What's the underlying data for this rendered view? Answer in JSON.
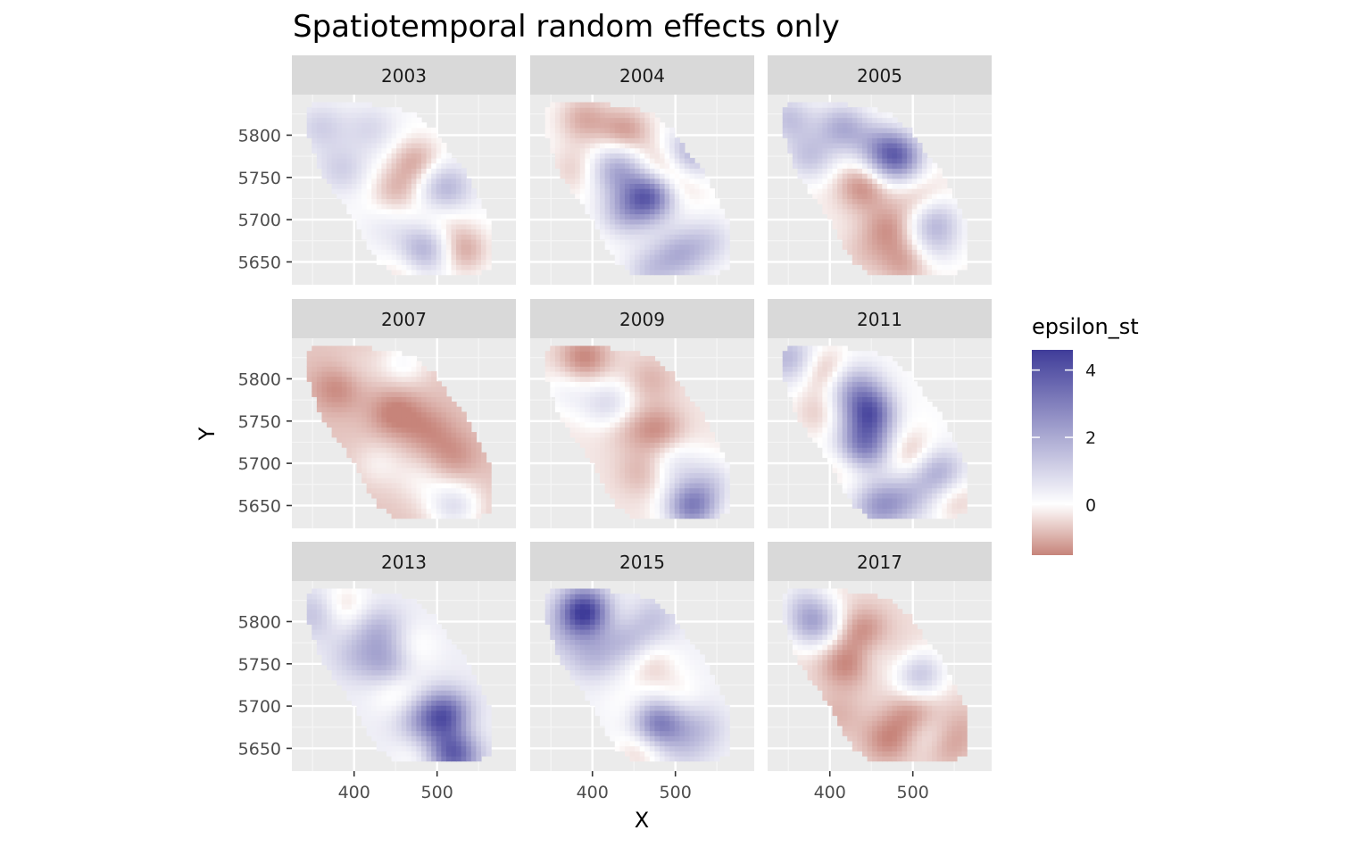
{
  "chart_data": {
    "type": "heatmap",
    "title": "Spatiotemporal random effects only",
    "xlabel": "X",
    "ylabel": "Y",
    "facets": [
      "2003",
      "2004",
      "2005",
      "2007",
      "2009",
      "2011",
      "2013",
      "2015",
      "2017"
    ],
    "xlim": [
      325,
      595
    ],
    "ylim": [
      5623,
      5848
    ],
    "x_ticks": [
      400,
      500
    ],
    "x_tick_labels": [
      "400",
      "500"
    ],
    "y_ticks": [
      5650,
      5700,
      5750,
      5800
    ],
    "y_tick_labels": [
      "5650",
      "5700",
      "5750",
      "5800"
    ],
    "grid": true,
    "legend": {
      "title": "epsilon_st",
      "position": "right",
      "range": [
        -1.5,
        4.6
      ],
      "breaks": [
        0,
        2,
        4
      ],
      "break_labels": [
        "0",
        "2",
        "4"
      ],
      "low_color": "#c7847a",
      "mid_color": "#ffffff",
      "high_color": "#3f3c99"
    },
    "region_outline": [
      [
        343,
        5834
      ],
      [
        372,
        5842
      ],
      [
        402,
        5838
      ],
      [
        438,
        5834
      ],
      [
        470,
        5828
      ],
      [
        495,
        5808
      ],
      [
        512,
        5782
      ],
      [
        532,
        5762
      ],
      [
        548,
        5732
      ],
      [
        560,
        5708
      ],
      [
        568,
        5672
      ],
      [
        566,
        5646
      ],
      [
        548,
        5636
      ],
      [
        482,
        5634
      ],
      [
        450,
        5636
      ],
      [
        430,
        5650
      ],
      [
        418,
        5666
      ],
      [
        408,
        5688
      ],
      [
        392,
        5712
      ],
      [
        374,
        5736
      ],
      [
        360,
        5756
      ],
      [
        350,
        5786
      ],
      [
        342,
        5812
      ]
    ],
    "fields": [
      {
        "year": "2003",
        "base": 0.1,
        "blobs": [
          [
            360,
            5810,
            1.0
          ],
          [
            420,
            5808,
            0.8
          ],
          [
            475,
            5770,
            -1.1
          ],
          [
            450,
            5735,
            -0.9
          ],
          [
            510,
            5738,
            1.7
          ],
          [
            505,
            5700,
            -0.5
          ],
          [
            530,
            5665,
            -1.2
          ],
          [
            485,
            5665,
            1.9
          ],
          [
            440,
            5690,
            0.4
          ],
          [
            385,
            5760,
            1.0
          ],
          [
            460,
            5640,
            -0.6
          ]
        ]
      },
      {
        "year": "2004",
        "base": 0.0,
        "blobs": [
          [
            390,
            5820,
            -1.0
          ],
          [
            440,
            5805,
            -1.2
          ],
          [
            480,
            5760,
            -1.1
          ],
          [
            470,
            5730,
            3.8
          ],
          [
            430,
            5760,
            2.0
          ],
          [
            440,
            5710,
            1.6
          ],
          [
            500,
            5740,
            -0.8
          ],
          [
            505,
            5660,
            1.6
          ],
          [
            540,
            5675,
            1.0
          ],
          [
            380,
            5760,
            -0.6
          ],
          [
            520,
            5780,
            1.9
          ],
          [
            470,
            5640,
            1.2
          ]
        ]
      },
      {
        "year": "2005",
        "base": -0.2,
        "blobs": [
          [
            350,
            5820,
            1.6
          ],
          [
            415,
            5810,
            2.0
          ],
          [
            455,
            5790,
            1.2
          ],
          [
            480,
            5775,
            3.6
          ],
          [
            440,
            5740,
            -1.2
          ],
          [
            510,
            5720,
            -0.8
          ],
          [
            525,
            5700,
            1.8
          ],
          [
            470,
            5690,
            -1.0
          ],
          [
            530,
            5670,
            0.8
          ],
          [
            490,
            5650,
            -0.9
          ],
          [
            375,
            5775,
            1.5
          ],
          [
            440,
            5660,
            -0.4
          ]
        ]
      },
      {
        "year": "2007",
        "base": -0.7,
        "blobs": [
          [
            380,
            5790,
            -0.8
          ],
          [
            450,
            5760,
            -0.9
          ],
          [
            490,
            5740,
            -0.6
          ],
          [
            430,
            5700,
            0.5
          ],
          [
            480,
            5680,
            0.5
          ],
          [
            520,
            5650,
            1.4
          ],
          [
            400,
            5810,
            0.3
          ],
          [
            520,
            5710,
            -0.6
          ],
          [
            460,
            5820,
            0.8
          ]
        ]
      },
      {
        "year": "2009",
        "base": -0.3,
        "blobs": [
          [
            390,
            5825,
            -1.2
          ],
          [
            420,
            5770,
            1.2
          ],
          [
            470,
            5800,
            -0.6
          ],
          [
            480,
            5740,
            -1.0
          ],
          [
            500,
            5700,
            0.8
          ],
          [
            520,
            5650,
            3.2
          ],
          [
            460,
            5690,
            -0.6
          ],
          [
            440,
            5745,
            -0.5
          ],
          [
            545,
            5680,
            1.0
          ],
          [
            370,
            5785,
            0.6
          ]
        ]
      },
      {
        "year": "2011",
        "base": 0.1,
        "blobs": [
          [
            350,
            5825,
            1.6
          ],
          [
            395,
            5810,
            -1.0
          ],
          [
            430,
            5790,
            1.8
          ],
          [
            450,
            5760,
            3.8
          ],
          [
            440,
            5720,
            3.0
          ],
          [
            420,
            5700,
            -0.8
          ],
          [
            470,
            5760,
            -0.6
          ],
          [
            500,
            5710,
            -1.0
          ],
          [
            530,
            5690,
            2.0
          ],
          [
            495,
            5660,
            1.2
          ],
          [
            460,
            5650,
            2.1
          ],
          [
            550,
            5660,
            -0.8
          ],
          [
            385,
            5760,
            -0.7
          ]
        ]
      },
      {
        "year": "2013",
        "base": 0.4,
        "blobs": [
          [
            355,
            5810,
            1.2
          ],
          [
            385,
            5818,
            -1.0
          ],
          [
            430,
            5790,
            1.3
          ],
          [
            470,
            5770,
            -0.6
          ],
          [
            400,
            5760,
            0.8
          ],
          [
            450,
            5720,
            -0.8
          ],
          [
            480,
            5680,
            1.2
          ],
          [
            510,
            5690,
            3.4
          ],
          [
            530,
            5670,
            -0.7
          ],
          [
            520,
            5645,
            3.6
          ],
          [
            480,
            5645,
            -0.6
          ],
          [
            440,
            5750,
            1.5
          ]
        ]
      },
      {
        "year": "2015",
        "base": 0.3,
        "blobs": [
          [
            390,
            5812,
            4.4
          ],
          [
            430,
            5800,
            -0.6
          ],
          [
            440,
            5780,
            1.4
          ],
          [
            400,
            5760,
            1.2
          ],
          [
            470,
            5750,
            -0.8
          ],
          [
            500,
            5710,
            -0.6
          ],
          [
            480,
            5680,
            3.0
          ],
          [
            530,
            5675,
            1.0
          ],
          [
            460,
            5650,
            -1.0
          ],
          [
            510,
            5648,
            0.6
          ],
          [
            360,
            5780,
            0.6
          ],
          [
            445,
            5700,
            -0.4
          ],
          [
            475,
            5805,
            1.0
          ]
        ]
      },
      {
        "year": "2017",
        "base": -0.4,
        "blobs": [
          [
            380,
            5800,
            2.4
          ],
          [
            440,
            5790,
            -1.0
          ],
          [
            420,
            5750,
            -1.1
          ],
          [
            455,
            5760,
            0.5
          ],
          [
            490,
            5750,
            -0.9
          ],
          [
            505,
            5740,
            2.2
          ],
          [
            500,
            5690,
            -1.0
          ],
          [
            520,
            5668,
            0.8
          ],
          [
            540,
            5655,
            -0.8
          ],
          [
            470,
            5660,
            -1.0
          ],
          [
            365,
            5830,
            0.8
          ],
          [
            410,
            5690,
            -0.5
          ],
          [
            560,
            5680,
            -0.4
          ]
        ]
      }
    ]
  }
}
